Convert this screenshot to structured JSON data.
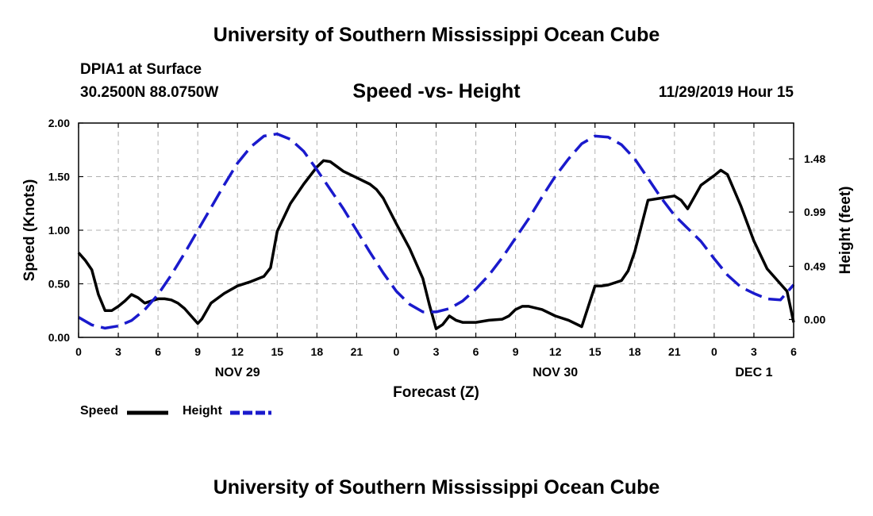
{
  "header": {
    "top_title": "University of Southern Mississippi Ocean Cube",
    "station": "DPIA1 at Surface",
    "coords": "30.2500N 88.0750W",
    "chart_title": "Speed -vs- Height",
    "datetime": "11/29/2019 Hour 15",
    "bottom_title": "University of Southern Mississippi Ocean Cube"
  },
  "legend": {
    "speed_label": "Speed",
    "height_label": "Height"
  },
  "colors": {
    "speed": "#000000",
    "height": "#1a1acc",
    "grid": "#b0b0b0"
  },
  "chart_data": {
    "type": "line",
    "title": "Speed -vs- Height",
    "xlabel": "Forecast (Z)",
    "ylabel": "Speed (Knots)",
    "y2label": "Height (feet)",
    "xlim": [
      0,
      54
    ],
    "ylim": [
      0,
      2.0
    ],
    "y2lim": [
      -0.165,
      1.81
    ],
    "grid": true,
    "legend_position": "bottom-left",
    "x_ticks": [
      {
        "x": 0,
        "label": "0"
      },
      {
        "x": 3,
        "label": "3"
      },
      {
        "x": 6,
        "label": "6"
      },
      {
        "x": 9,
        "label": "9"
      },
      {
        "x": 12,
        "label": "12"
      },
      {
        "x": 15,
        "label": "15"
      },
      {
        "x": 18,
        "label": "18"
      },
      {
        "x": 21,
        "label": "21"
      },
      {
        "x": 24,
        "label": "0"
      },
      {
        "x": 27,
        "label": "3"
      },
      {
        "x": 30,
        "label": "6"
      },
      {
        "x": 33,
        "label": "9"
      },
      {
        "x": 36,
        "label": "12"
      },
      {
        "x": 39,
        "label": "15"
      },
      {
        "x": 42,
        "label": "18"
      },
      {
        "x": 45,
        "label": "21"
      },
      {
        "x": 48,
        "label": "0"
      },
      {
        "x": 51,
        "label": "3"
      },
      {
        "x": 54,
        "label": "6"
      }
    ],
    "date_labels": [
      {
        "x": 12,
        "label": "NOV 29"
      },
      {
        "x": 36,
        "label": "NOV 30"
      },
      {
        "x": 51,
        "label": "DEC 1"
      }
    ],
    "y_ticks": [
      {
        "y": 0.0,
        "label": "0.00"
      },
      {
        "y": 0.5,
        "label": "0.50"
      },
      {
        "y": 1.0,
        "label": "1.00"
      },
      {
        "y": 1.5,
        "label": "1.50"
      },
      {
        "y": 2.0,
        "label": "2.00"
      }
    ],
    "y2_ticks": [
      {
        "y": 0.0,
        "label": "0.00"
      },
      {
        "y": 0.49,
        "label": "0.49"
      },
      {
        "y": 0.99,
        "label": "0.99"
      },
      {
        "y": 1.48,
        "label": "1.48"
      }
    ],
    "series": [
      {
        "name": "Speed",
        "axis": "left",
        "style": "solid",
        "x": [
          0,
          0.5,
          1,
          1.5,
          2,
          2.5,
          3,
          3.5,
          4,
          4.5,
          5,
          5.5,
          6,
          6.5,
          7,
          7.5,
          8,
          8.5,
          9,
          9.3,
          10,
          11,
          12,
          13,
          14,
          14.5,
          15,
          16,
          17,
          18,
          18.5,
          19,
          20,
          21,
          22,
          22.5,
          23,
          24,
          25,
          26,
          26.5,
          27,
          27.5,
          28,
          28.5,
          29,
          30,
          31,
          32,
          32.5,
          33,
          33.5,
          34,
          35,
          36,
          37,
          38,
          39,
          39.5,
          40,
          40.5,
          41,
          41.5,
          42,
          43,
          44,
          45,
          45.5,
          46,
          47,
          48,
          48.5,
          49,
          50,
          51,
          52,
          53,
          53.5,
          54
        ],
        "values": [
          0.79,
          0.72,
          0.63,
          0.4,
          0.25,
          0.25,
          0.29,
          0.34,
          0.4,
          0.37,
          0.32,
          0.34,
          0.36,
          0.36,
          0.35,
          0.32,
          0.27,
          0.2,
          0.13,
          0.17,
          0.32,
          0.41,
          0.48,
          0.52,
          0.57,
          0.65,
          0.99,
          1.25,
          1.43,
          1.59,
          1.65,
          1.64,
          1.55,
          1.49,
          1.43,
          1.38,
          1.3,
          1.06,
          0.83,
          0.55,
          0.3,
          0.08,
          0.12,
          0.2,
          0.16,
          0.14,
          0.14,
          0.16,
          0.17,
          0.2,
          0.26,
          0.29,
          0.29,
          0.26,
          0.2,
          0.16,
          0.1,
          0.48,
          0.48,
          0.49,
          0.51,
          0.53,
          0.62,
          0.8,
          1.28,
          1.3,
          1.32,
          1.28,
          1.2,
          1.42,
          1.51,
          1.56,
          1.52,
          1.23,
          0.9,
          0.64,
          0.5,
          0.43,
          0.14
        ]
      },
      {
        "name": "Height",
        "axis": "right",
        "style": "dashed",
        "x": [
          0,
          1,
          2,
          3,
          4,
          5,
          6,
          7,
          8,
          9,
          10,
          11,
          12,
          13,
          14,
          15,
          16,
          17,
          18,
          19,
          20,
          21,
          22,
          23,
          24,
          25,
          26,
          27,
          28,
          29,
          30,
          31,
          32,
          33,
          34,
          35,
          36,
          37,
          38,
          39,
          40,
          41,
          42,
          43,
          44,
          45,
          46,
          47,
          48,
          49,
          50,
          51,
          52,
          53,
          54
        ],
        "values": [
          0.02,
          -0.05,
          -0.08,
          -0.06,
          -0.01,
          0.09,
          0.23,
          0.41,
          0.61,
          0.82,
          1.03,
          1.24,
          1.44,
          1.59,
          1.69,
          1.71,
          1.66,
          1.55,
          1.38,
          1.2,
          1.02,
          0.82,
          0.62,
          0.43,
          0.26,
          0.14,
          0.07,
          0.07,
          0.1,
          0.17,
          0.28,
          0.41,
          0.57,
          0.75,
          0.93,
          1.13,
          1.32,
          1.48,
          1.62,
          1.69,
          1.68,
          1.61,
          1.48,
          1.3,
          1.12,
          0.96,
          0.84,
          0.72,
          0.56,
          0.41,
          0.3,
          0.24,
          0.19,
          0.18,
          0.32
        ]
      }
    ]
  }
}
